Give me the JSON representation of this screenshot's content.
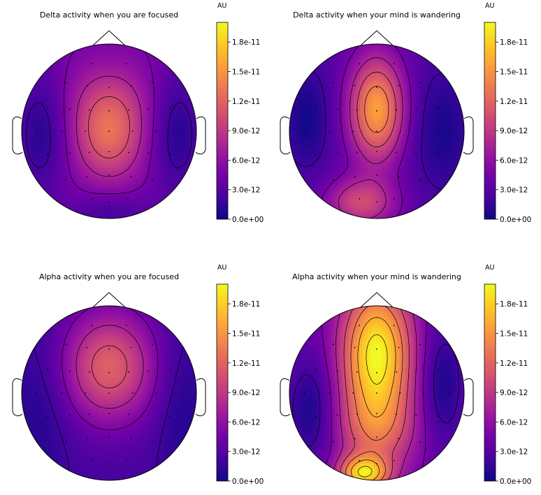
{
  "colors": {
    "background": "#ffffff",
    "outline": "#000000",
    "colormap": [
      "#0d0887",
      "#46039f",
      "#7201a8",
      "#9c179e",
      "#bd3786",
      "#d8576b",
      "#ed7953",
      "#fb9f3a",
      "#fdca26",
      "#f0f921"
    ]
  },
  "chart_data": [
    {
      "type": "heatmap",
      "subtype": "eeg-topomap",
      "title": "Delta activity when you are focused",
      "colorbar": {
        "label": "AU",
        "range": [
          0,
          2e-11
        ],
        "ticks": [
          "0.0e+00",
          "3.0e-12",
          "6.0e-12",
          "9.0e-12",
          "1.2e-11",
          "1.5e-11",
          "1.8e-11"
        ],
        "tick_values": [
          0,
          3e-12,
          6e-12,
          9e-12,
          1.2e-11,
          1.5e-11,
          1.8e-11
        ]
      },
      "baseline": 4.6e-12,
      "hotspots": [
        {
          "pos": [
            0.0,
            0.0
          ],
          "peak": 8e-12,
          "spread": [
            0.28,
            0.38
          ]
        },
        {
          "pos": [
            0.0,
            0.45
          ],
          "peak": 1.2e-12,
          "spread": [
            0.5,
            0.3
          ]
        },
        {
          "pos": [
            -0.78,
            0.0
          ],
          "peak": -3.6e-12,
          "spread": [
            0.22,
            0.55
          ]
        },
        {
          "pos": [
            0.78,
            0.0
          ],
          "peak": -3.6e-12,
          "spread": [
            0.22,
            0.55
          ]
        },
        {
          "pos": [
            0.0,
            -0.95
          ],
          "peak": -2.6e-12,
          "spread": [
            0.35,
            0.18
          ]
        }
      ]
    },
    {
      "type": "heatmap",
      "subtype": "eeg-topomap",
      "title": "Delta activity when your mind is wandering",
      "colorbar": {
        "label": "AU",
        "range": [
          0,
          2e-11
        ],
        "ticks": [
          "0.0e+00",
          "3.0e-12",
          "6.0e-12",
          "9.0e-12",
          "1.2e-11",
          "1.5e-11",
          "1.8e-11"
        ],
        "tick_values": [
          0,
          3e-12,
          6e-12,
          9e-12,
          1.2e-11,
          1.5e-11,
          1.8e-11
        ]
      },
      "baseline": 3e-12,
      "hotspots": [
        {
          "pos": [
            0.0,
            0.25
          ],
          "peak": 1.25e-11,
          "spread": [
            0.22,
            0.42
          ]
        },
        {
          "pos": [
            -0.18,
            -0.82
          ],
          "peak": 7e-12,
          "spread": [
            0.28,
            0.2
          ]
        },
        {
          "pos": [
            -0.8,
            0.15
          ],
          "peak": -2.8e-12,
          "spread": [
            0.18,
            0.4
          ]
        },
        {
          "pos": [
            0.75,
            0.0
          ],
          "peak": -2.5e-12,
          "spread": [
            0.25,
            0.5
          ]
        }
      ]
    },
    {
      "type": "heatmap",
      "subtype": "eeg-topomap",
      "title": "Alpha activity when you are focused",
      "colorbar": {
        "label": "AU",
        "range": [
          0,
          2e-11
        ],
        "ticks": [
          "0.0e+00",
          "3.0e-12",
          "6.0e-12",
          "9.0e-12",
          "1.2e-11",
          "1.5e-11",
          "1.8e-11"
        ],
        "tick_values": [
          0,
          3e-12,
          6e-12,
          9e-12,
          1.2e-11,
          1.5e-11,
          1.8e-11
        ]
      },
      "baseline": 2.2e-12,
      "hotspots": [
        {
          "pos": [
            0.0,
            0.3
          ],
          "peak": 9.5e-12,
          "spread": [
            0.38,
            0.45
          ]
        },
        {
          "pos": [
            -0.75,
            -0.1
          ],
          "peak": -1.6e-12,
          "spread": [
            0.25,
            0.6
          ]
        },
        {
          "pos": [
            0.8,
            -0.1
          ],
          "peak": -1.6e-12,
          "spread": [
            0.2,
            0.6
          ]
        }
      ]
    },
    {
      "type": "heatmap",
      "subtype": "eeg-topomap",
      "title": "Alpha activity when your mind is wandering",
      "colorbar": {
        "label": "AU",
        "range": [
          0,
          2e-11
        ],
        "ticks": [
          "0.0e+00",
          "3.0e-12",
          "6.0e-12",
          "9.0e-12",
          "1.2e-11",
          "1.5e-11",
          "1.8e-11"
        ],
        "tick_values": [
          0,
          3e-12,
          6e-12,
          9e-12,
          1.2e-11,
          1.5e-11,
          1.8e-11
        ]
      },
      "baseline": 4e-12,
      "hotspots": [
        {
          "pos": [
            0.0,
            0.45
          ],
          "peak": 1.6e-11,
          "spread": [
            0.28,
            0.55
          ]
        },
        {
          "pos": [
            0.0,
            -0.45
          ],
          "peak": 6e-12,
          "spread": [
            0.32,
            0.35
          ]
        },
        {
          "pos": [
            -0.15,
            -0.92
          ],
          "peak": 1.3e-11,
          "spread": [
            0.2,
            0.14
          ]
        },
        {
          "pos": [
            -0.75,
            -0.2
          ],
          "peak": -3.6e-12,
          "spread": [
            0.2,
            0.45
          ]
        },
        {
          "pos": [
            0.75,
            0.1
          ],
          "peak": -3.6e-12,
          "spread": [
            0.18,
            0.5
          ]
        }
      ]
    }
  ]
}
